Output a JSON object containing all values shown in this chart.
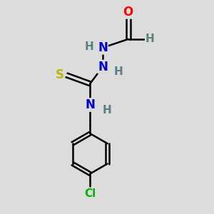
{
  "bg_color": "#dcdcdc",
  "atom_colors": {
    "O": "#ff0000",
    "N": "#0000cd",
    "S": "#b8b800",
    "Cl": "#00b400",
    "C": "#000000",
    "H": "#5c8080"
  },
  "bond_color": "#000000",
  "bond_width": 1.8,
  "fig_width": 3.0,
  "fig_height": 3.0,
  "dpi": 100
}
